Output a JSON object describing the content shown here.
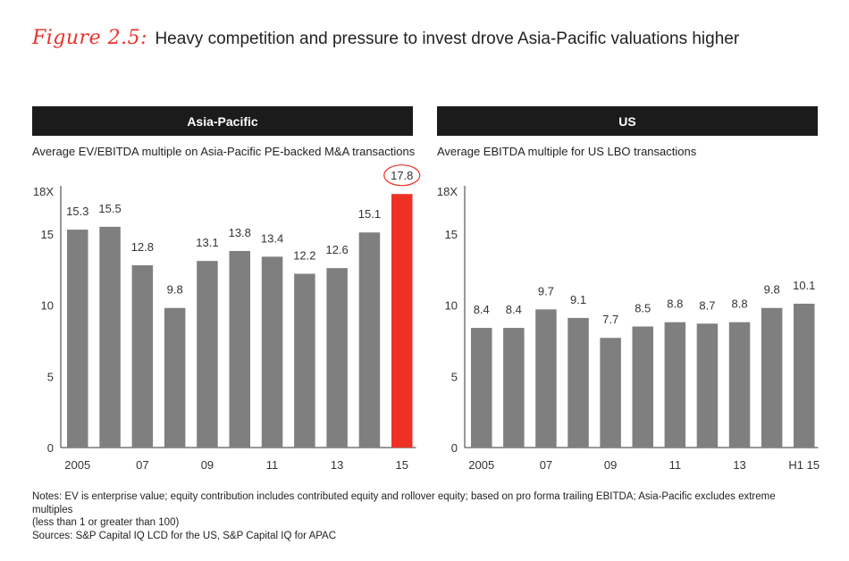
{
  "figure": {
    "label": "Figure 2.5:",
    "title": "Heavy competition and pressure to invest drove Asia-Pacific valuations higher"
  },
  "colors": {
    "bar": "#7f7f80",
    "highlight": "#ee3124",
    "header_bg": "#1b1b1b",
    "accent": "#e8322c"
  },
  "chart_data": [
    {
      "type": "bar",
      "panel_title": "Asia-Pacific",
      "title": "Average EV/EBITDA multiple on Asia-Pacific PE-backed M&A transactions",
      "categories": [
        "2005",
        "2006",
        "2007",
        "2008",
        "2009",
        "2010",
        "2011",
        "2012",
        "2013",
        "2014",
        "2015"
      ],
      "values": [
        15.3,
        15.5,
        12.8,
        9.8,
        13.1,
        13.8,
        13.4,
        12.2,
        12.6,
        15.1,
        17.8
      ],
      "value_labels": [
        "15.3",
        "15.5",
        "12.8",
        "9.8",
        "13.1",
        "13.8",
        "13.4",
        "12.2",
        "12.6",
        "15.1",
        "17.8"
      ],
      "x_tick_labels": [
        "2005",
        "",
        "07",
        "",
        "09",
        "",
        "11",
        "",
        "13",
        "",
        "15"
      ],
      "y_ticks": [
        0,
        5,
        10,
        15,
        18
      ],
      "y_tick_labels": [
        "0",
        "5",
        "10",
        "15",
        "18X"
      ],
      "ylim": [
        0,
        18
      ],
      "highlight_index": 10,
      "xlabel": "",
      "ylabel": ""
    },
    {
      "type": "bar",
      "panel_title": "US",
      "title": "Average EBITDA multiple for US LBO transactions",
      "categories": [
        "2005",
        "2006",
        "2007",
        "2008",
        "2009",
        "2010",
        "2011",
        "2012",
        "2013",
        "2014",
        "H1 2015"
      ],
      "values": [
        8.4,
        8.4,
        9.7,
        9.1,
        7.7,
        8.5,
        8.8,
        8.7,
        8.8,
        9.8,
        10.1
      ],
      "value_labels": [
        "8.4",
        "8.4",
        "9.7",
        "9.1",
        "7.7",
        "8.5",
        "8.8",
        "8.7",
        "8.8",
        "9.8",
        "10.1"
      ],
      "x_tick_labels": [
        "2005",
        "",
        "07",
        "",
        "09",
        "",
        "11",
        "",
        "13",
        "",
        "H1 15"
      ],
      "y_ticks": [
        0,
        5,
        10,
        15,
        18
      ],
      "y_tick_labels": [
        "0",
        "5",
        "10",
        "15",
        "18X"
      ],
      "ylim": [
        0,
        18
      ],
      "highlight_index": -1,
      "xlabel": "",
      "ylabel": ""
    }
  ],
  "notes": {
    "line1": "Notes: EV is enterprise value; equity contribution includes contributed equity and rollover equity; based on pro forma trailing EBITDA; Asia-Pacific excludes extreme multiples",
    "line2": "(less than 1 or greater than 100)",
    "sources": "Sources: S&P Capital IQ LCD for the US, S&P Capital IQ for APAC"
  }
}
